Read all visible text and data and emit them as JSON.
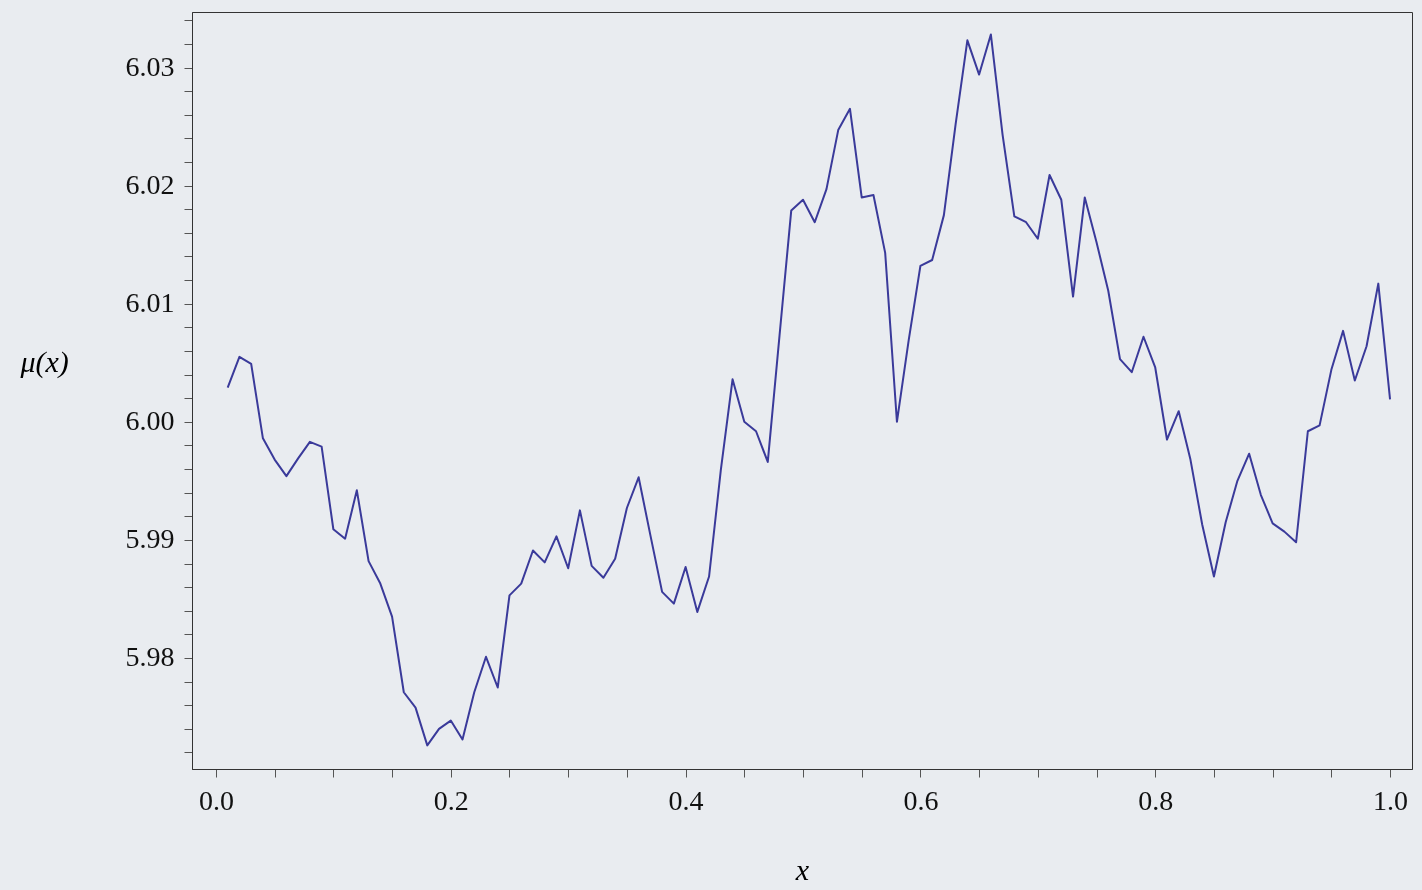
{
  "chart_data": {
    "type": "line",
    "xlabel": "x",
    "ylabel": "μ(x)",
    "x": [
      0.01,
      0.02,
      0.03,
      0.04,
      0.05,
      0.06,
      0.07,
      0.08,
      0.09,
      0.1,
      0.11,
      0.12,
      0.13,
      0.14,
      0.15,
      0.16,
      0.17,
      0.18,
      0.19,
      0.2,
      0.21,
      0.22,
      0.23,
      0.24,
      0.25,
      0.26,
      0.27,
      0.28,
      0.29,
      0.3,
      0.31,
      0.32,
      0.33,
      0.34,
      0.35,
      0.36,
      0.37,
      0.38,
      0.39,
      0.4,
      0.41,
      0.42,
      0.43,
      0.44,
      0.45,
      0.46,
      0.47,
      0.48,
      0.49,
      0.5,
      0.51,
      0.52,
      0.53,
      0.54,
      0.55,
      0.56,
      0.57,
      0.58,
      0.59,
      0.6,
      0.61,
      0.62,
      0.63,
      0.64,
      0.65,
      0.66,
      0.67,
      0.68,
      0.69,
      0.7,
      0.71,
      0.72,
      0.73,
      0.74,
      0.75,
      0.76,
      0.77,
      0.78,
      0.79,
      0.8,
      0.81,
      0.82,
      0.83,
      0.84,
      0.85,
      0.86,
      0.87,
      0.88,
      0.89,
      0.9,
      0.91,
      0.92,
      0.93,
      0.94,
      0.95,
      0.96,
      0.97,
      0.98,
      0.99,
      1.0
    ],
    "series": [
      {
        "color": "#3a3a9a",
        "values": [
          6.0029,
          6.0055,
          6.0049,
          5.9986,
          5.9968,
          5.9954,
          5.9969,
          5.9983,
          5.9979,
          5.9909,
          5.9901,
          5.9942,
          5.9882,
          5.9863,
          5.9835,
          5.9771,
          5.9758,
          5.9726,
          5.974,
          5.9747,
          5.9731,
          5.9771,
          5.9801,
          5.9775,
          5.9853,
          5.9863,
          5.9891,
          5.9881,
          5.9903,
          5.9876,
          5.9925,
          5.9878,
          5.9868,
          5.9884,
          5.9927,
          5.9953,
          5.9904,
          5.9856,
          5.9846,
          5.9877,
          5.9839,
          5.9869,
          5.9959,
          6.0036,
          6.0,
          5.9992,
          5.9966,
          6.0073,
          6.0179,
          6.0188,
          6.0169,
          6.0197,
          6.0247,
          6.0265,
          6.019,
          6.0192,
          6.0143,
          6.0,
          6.0069,
          6.0132,
          6.0137,
          6.0175,
          6.0252,
          6.0323,
          6.0294,
          6.0328,
          6.0243,
          6.0174,
          6.0169,
          6.0155,
          6.0209,
          6.0188,
          6.0106,
          6.019,
          6.0152,
          6.0111,
          6.0053,
          6.0042,
          6.0072,
          6.0046,
          5.9985,
          6.0009,
          5.9968,
          5.9913,
          5.9869,
          5.9915,
          5.995,
          5.9973,
          5.9938,
          5.9914,
          5.9907,
          5.9898,
          5.9992,
          5.9997,
          6.0044,
          6.0077,
          6.0035,
          6.0064,
          6.0117,
          6.0019
        ]
      }
    ],
    "xlim": [
      -0.0204,
      1.0187
    ],
    "ylim": [
      5.9706,
      6.0347
    ],
    "xticks": [
      {
        "value": 0,
        "label": "0.0"
      },
      {
        "value": 0.05,
        "label": null
      },
      {
        "value": 0.1,
        "label": null
      },
      {
        "value": 0.15,
        "label": null
      },
      {
        "value": 0.2,
        "label": "0.2"
      },
      {
        "value": 0.25,
        "label": null
      },
      {
        "value": 0.3,
        "label": null
      },
      {
        "value": 0.35,
        "label": null
      },
      {
        "value": 0.4,
        "label": "0.4"
      },
      {
        "value": 0.45,
        "label": null
      },
      {
        "value": 0.5,
        "label": null
      },
      {
        "value": 0.55,
        "label": null
      },
      {
        "value": 0.6,
        "label": "0.6"
      },
      {
        "value": 0.65,
        "label": null
      },
      {
        "value": 0.7,
        "label": null
      },
      {
        "value": 0.75,
        "label": null
      },
      {
        "value": 0.8,
        "label": "0.8"
      },
      {
        "value": 0.85,
        "label": null
      },
      {
        "value": 0.9,
        "label": null
      },
      {
        "value": 0.95,
        "label": null
      },
      {
        "value": 1,
        "label": "1.0"
      }
    ],
    "yticks": [
      {
        "value": 5.972,
        "label": null
      },
      {
        "value": 5.974,
        "label": null
      },
      {
        "value": 5.976,
        "label": null
      },
      {
        "value": 5.978,
        "label": null
      },
      {
        "value": 5.98,
        "label": "5.98"
      },
      {
        "value": 5.982,
        "label": null
      },
      {
        "value": 5.984,
        "label": null
      },
      {
        "value": 5.986,
        "label": null
      },
      {
        "value": 5.988,
        "label": null
      },
      {
        "value": 5.99,
        "label": "5.99"
      },
      {
        "value": 5.992,
        "label": null
      },
      {
        "value": 5.994,
        "label": null
      },
      {
        "value": 5.996,
        "label": null
      },
      {
        "value": 5.998,
        "label": null
      },
      {
        "value": 6.0,
        "label": "6.00"
      },
      {
        "value": 6.002,
        "label": null
      },
      {
        "value": 6.004,
        "label": null
      },
      {
        "value": 6.006,
        "label": null
      },
      {
        "value": 6.008,
        "label": null
      },
      {
        "value": 6.01,
        "label": "6.01"
      },
      {
        "value": 6.012,
        "label": null
      },
      {
        "value": 6.014,
        "label": null
      },
      {
        "value": 6.016,
        "label": null
      },
      {
        "value": 6.018,
        "label": null
      },
      {
        "value": 6.02,
        "label": "6.02"
      },
      {
        "value": 6.022,
        "label": null
      },
      {
        "value": 6.024,
        "label": null
      },
      {
        "value": 6.026,
        "label": null
      },
      {
        "value": 6.028,
        "label": null
      },
      {
        "value": 6.03,
        "label": "6.03"
      },
      {
        "value": 6.032,
        "label": null
      },
      {
        "value": 6.034,
        "label": null
      }
    ],
    "grid": false,
    "marker": "none",
    "line_style": "solid",
    "legend": false
  }
}
